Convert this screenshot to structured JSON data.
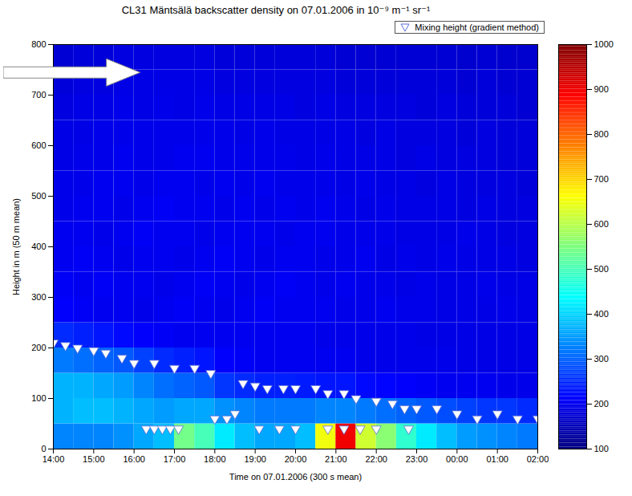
{
  "chart_data": {
    "type": "heatmap",
    "title": "CL31 Mäntsälä backscatter density on 07.01.2006 in 10⁻⁹ m⁻¹ sr⁻¹",
    "xlabel": "Time on 07.01.2006 (300 s mean)",
    "ylabel": "Height in m (50 m mean)",
    "xlim": [
      14,
      26
    ],
    "xticks": [
      {
        "value": 14,
        "label": "14:00"
      },
      {
        "value": 15,
        "label": "15:00"
      },
      {
        "value": 16,
        "label": "16:00"
      },
      {
        "value": 17,
        "label": "17:00"
      },
      {
        "value": 18,
        "label": "18:00"
      },
      {
        "value": 19,
        "label": "19:00"
      },
      {
        "value": 20,
        "label": "20:00"
      },
      {
        "value": 21,
        "label": "21:00"
      },
      {
        "value": 22,
        "label": "22:00"
      },
      {
        "value": 23,
        "label": "23:00"
      },
      {
        "value": 24,
        "label": "00:00"
      },
      {
        "value": 25,
        "label": "01:00"
      },
      {
        "value": 26,
        "label": "02:00"
      }
    ],
    "ylim": [
      0,
      800
    ],
    "yticks": [
      0,
      100,
      200,
      300,
      400,
      500,
      600,
      700,
      800
    ],
    "grid": false,
    "legend": "top",
    "cells": {
      "x_edges": [
        14,
        14.5,
        15,
        15.5,
        16,
        16.5,
        17,
        17.5,
        18,
        18.5,
        19,
        19.5,
        20,
        20.5,
        21,
        21.5,
        22,
        22.5,
        23,
        23.5,
        24,
        24.5,
        25,
        25.5,
        26
      ],
      "y_edges": [
        0,
        50,
        100,
        150,
        200,
        250,
        300,
        350,
        400,
        450,
        500,
        550,
        600,
        650,
        700,
        750,
        800
      ],
      "values": [
        [
          330,
          330,
          330,
          340,
          360,
          380,
          540,
          500,
          420,
          380,
          360,
          360,
          380,
          650,
          900,
          620,
          560,
          480,
          420,
          380,
          350,
          340,
          330,
          320
        ],
        [
          370,
          380,
          380,
          370,
          360,
          350,
          360,
          360,
          340,
          330,
          320,
          320,
          320,
          330,
          330,
          320,
          310,
          300,
          290,
          280,
          270,
          260,
          260,
          250
        ],
        [
          370,
          370,
          360,
          350,
          330,
          310,
          300,
          290,
          260,
          250,
          240,
          240,
          235,
          230,
          230,
          220,
          215,
          210,
          205,
          200,
          200,
          200,
          195,
          195
        ],
        [
          320,
          310,
          300,
          290,
          270,
          250,
          240,
          230,
          210,
          205,
          200,
          200,
          200,
          200,
          200,
          195,
          195,
          195,
          195,
          195,
          190,
          190,
          190,
          190
        ],
        [
          250,
          240,
          230,
          220,
          210,
          205,
          200,
          200,
          200,
          200,
          200,
          200,
          200,
          195,
          195,
          195,
          195,
          195,
          190,
          190,
          190,
          190,
          190,
          190
        ],
        [
          210,
          205,
          200,
          200,
          195,
          200,
          205,
          200,
          195,
          200,
          205,
          200,
          200,
          200,
          195,
          195,
          200,
          195,
          195,
          190,
          190,
          190,
          195,
          190
        ],
        [
          205,
          200,
          205,
          200,
          200,
          195,
          200,
          205,
          200,
          195,
          200,
          205,
          200,
          195,
          200,
          195,
          195,
          190,
          195,
          190,
          190,
          195,
          190,
          190
        ],
        [
          200,
          205,
          200,
          195,
          200,
          200,
          195,
          200,
          205,
          200,
          195,
          200,
          200,
          195,
          195,
          200,
          190,
          195,
          190,
          195,
          190,
          190,
          190,
          185
        ],
        [
          200,
          200,
          195,
          200,
          205,
          200,
          200,
          195,
          200,
          200,
          200,
          195,
          200,
          200,
          195,
          195,
          195,
          190,
          190,
          190,
          195,
          190,
          185,
          185
        ],
        [
          195,
          200,
          200,
          195,
          200,
          205,
          200,
          200,
          195,
          200,
          195,
          200,
          195,
          200,
          195,
          190,
          195,
          190,
          190,
          190,
          185,
          190,
          185,
          185
        ],
        [
          195,
          195,
          200,
          200,
          195,
          200,
          200,
          195,
          200,
          195,
          200,
          195,
          195,
          195,
          190,
          195,
          190,
          190,
          185,
          190,
          185,
          185,
          185,
          180
        ],
        [
          190,
          195,
          195,
          200,
          195,
          195,
          200,
          200,
          195,
          195,
          195,
          195,
          190,
          195,
          190,
          190,
          190,
          185,
          190,
          185,
          185,
          185,
          180,
          180
        ],
        [
          190,
          190,
          195,
          195,
          195,
          195,
          195,
          195,
          195,
          190,
          195,
          190,
          190,
          190,
          190,
          185,
          190,
          185,
          185,
          185,
          180,
          185,
          180,
          180
        ],
        [
          185,
          190,
          190,
          195,
          190,
          195,
          190,
          195,
          190,
          190,
          190,
          190,
          185,
          190,
          185,
          185,
          185,
          185,
          180,
          185,
          180,
          180,
          180,
          175
        ],
        [
          180,
          185,
          185,
          190,
          190,
          190,
          190,
          190,
          185,
          185,
          185,
          185,
          185,
          185,
          180,
          180,
          180,
          180,
          180,
          180,
          175,
          180,
          175,
          175
        ],
        [
          175,
          180,
          180,
          185,
          185,
          185,
          185,
          185,
          180,
          180,
          180,
          180,
          180,
          180,
          175,
          175,
          175,
          175,
          175,
          175,
          170,
          175,
          170,
          170
        ]
      ]
    },
    "colorbar": {
      "range": [
        100,
        1000
      ],
      "ticks": [
        100,
        200,
        300,
        400,
        500,
        600,
        700,
        800,
        900,
        1000
      ]
    },
    "series": [
      {
        "name": "Mixing height (gradient method)",
        "type": "scatter",
        "marker": "triangle-down",
        "color": "#ffffff",
        "x": [
          14.0,
          14.3,
          14.6,
          15.0,
          15.3,
          15.7,
          16.0,
          16.5,
          17.0,
          17.5,
          17.9,
          18.0,
          18.3,
          18.5,
          18.7,
          19.0,
          19.3,
          19.7,
          20.0,
          20.5,
          20.8,
          21.2,
          21.5,
          22.0,
          22.4,
          22.7,
          23.0,
          23.5,
          24.0,
          24.5,
          25.0,
          25.5,
          26.0,
          16.3,
          16.5,
          16.7,
          16.9,
          17.1,
          19.1,
          19.6,
          20.0,
          20.8,
          21.2,
          21.6,
          22.0,
          22.8
        ],
        "values": [
          210,
          205,
          200,
          195,
          190,
          180,
          170,
          170,
          160,
          160,
          150,
          60,
          60,
          70,
          130,
          125,
          120,
          120,
          120,
          120,
          110,
          110,
          100,
          95,
          90,
          80,
          80,
          80,
          70,
          60,
          70,
          60,
          60,
          40,
          40,
          40,
          40,
          40,
          40,
          40,
          40,
          40,
          40,
          40,
          40,
          40
        ]
      }
    ]
  }
}
